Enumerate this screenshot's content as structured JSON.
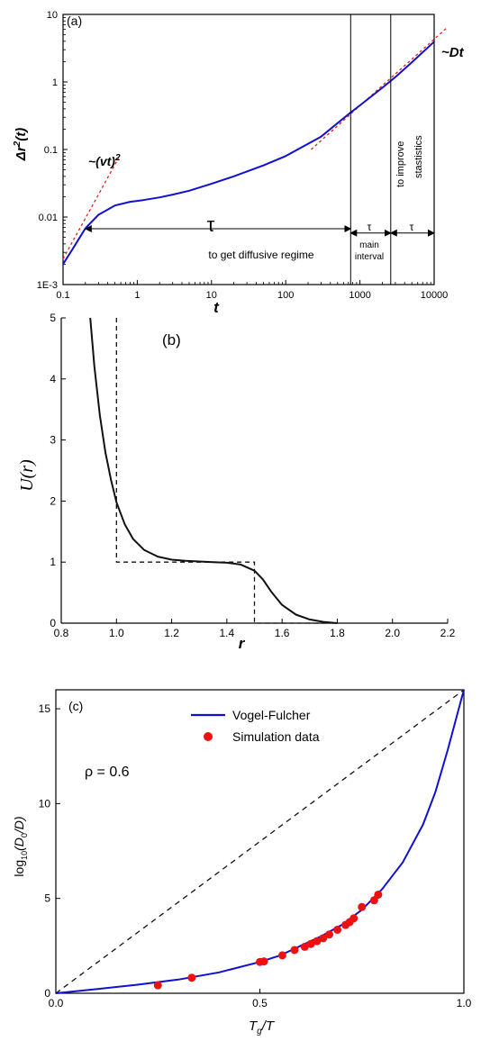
{
  "chart_data": [
    {
      "id": "a",
      "type": "line",
      "panel_label": "(a)",
      "xlabel": "t",
      "ylabel_main": "Δr",
      "ylabel_sup": "2",
      "ylabel_tail": "(t)",
      "xscale": "log",
      "yscale": "log",
      "xlim": [
        0.1,
        10000
      ],
      "ylim": [
        0.001,
        10
      ],
      "x_ticks": [
        0.1,
        1,
        10,
        100,
        1000,
        10000
      ],
      "x_tick_labels": [
        "0.1",
        "1",
        "10",
        "100",
        "1000",
        "10000"
      ],
      "y_ticks": [
        0.001,
        0.01,
        0.1,
        1,
        10
      ],
      "y_tick_labels": [
        "1E-3",
        "0.01",
        "0.1",
        "1",
        "10"
      ],
      "series": [
        {
          "color": "#1010d0",
          "style": "solid",
          "x": [
            0.1,
            0.14,
            0.2,
            0.3,
            0.5,
            0.8,
            1.2,
            2,
            3,
            5,
            10,
            20,
            50,
            100,
            300,
            720,
            1000,
            2000,
            3000,
            5000,
            10000
          ],
          "y": [
            0.002,
            0.0036,
            0.0068,
            0.0108,
            0.0148,
            0.0168,
            0.0178,
            0.0195,
            0.0215,
            0.0245,
            0.031,
            0.04,
            0.058,
            0.08,
            0.155,
            0.34,
            0.45,
            0.82,
            1.18,
            1.95,
            3.95
          ]
        }
      ],
      "dashed_lines": [
        {
          "name": "~(vt)^2",
          "color": "#e02020",
          "x": [
            0.1,
            0.56
          ],
          "y": [
            0.0024,
            0.075
          ]
        },
        {
          "name": "~Dt",
          "color": "#e02020",
          "x": [
            220,
            14500
          ],
          "y": [
            0.1,
            6.2
          ]
        }
      ],
      "vlines": [
        750,
        2600,
        10000
      ],
      "annotations": {
        "vt_label": "~(vt)",
        "vt_sup": "2",
        "dt_label": "~Dt",
        "tau": "τ",
        "diffusive": "to get diffusive regime",
        "main1": "main",
        "main2": "interval",
        "improve": "to improve",
        "statistics": "stastistics"
      }
    },
    {
      "id": "b",
      "type": "line",
      "panel_label": "(b)",
      "xlabel": "r",
      "ylabel": "U(r)",
      "xlim": [
        0.8,
        2.2
      ],
      "ylim": [
        0,
        5
      ],
      "x_ticks": [
        0.8,
        1.0,
        1.2,
        1.4,
        1.6,
        1.8,
        2.0,
        2.2
      ],
      "x_tick_labels": [
        "0.8",
        "1.0",
        "1.2",
        "1.4",
        "1.6",
        "1.8",
        "2.0",
        "2.2"
      ],
      "y_ticks": [
        0,
        1,
        2,
        3,
        4,
        5
      ],
      "y_tick_labels": [
        "0",
        "1",
        "2",
        "3",
        "4",
        "5"
      ],
      "series": [
        {
          "color": "#111111",
          "style": "solid",
          "x": [
            0.905,
            0.92,
            0.94,
            0.96,
            0.98,
            1.0,
            1.03,
            1.06,
            1.1,
            1.15,
            1.2,
            1.25,
            1.3,
            1.35,
            1.4,
            1.45,
            1.5,
            1.53,
            1.56,
            1.6,
            1.65,
            1.7,
            1.75,
            1.8
          ],
          "y": [
            5.0,
            4.2,
            3.4,
            2.8,
            2.35,
            1.98,
            1.62,
            1.38,
            1.2,
            1.09,
            1.04,
            1.02,
            1.01,
            1.0,
            0.99,
            0.96,
            0.86,
            0.72,
            0.52,
            0.3,
            0.14,
            0.06,
            0.02,
            0.0
          ]
        },
        {
          "color": "#111111",
          "style": "dashed",
          "x": [
            1.0,
            1.0,
            1.5,
            1.5,
            1.8
          ],
          "y": [
            5.0,
            1.0,
            1.0,
            0.0,
            0.0
          ]
        }
      ]
    },
    {
      "id": "c",
      "type": "line",
      "panel_label": "(c)",
      "xlabel_main": "T",
      "xlabel_sub": "g",
      "xlabel_tail": "/T",
      "ylabel_main": "log",
      "ylabel_sub": "10",
      "ylabel_tail": "(D",
      "ylabel_sub2": "0",
      "ylabel_end": "/D)",
      "xlim": [
        0,
        1
      ],
      "ylim": [
        0,
        16
      ],
      "x_ticks": [
        0,
        0.5,
        1
      ],
      "x_tick_labels": [
        "0.0",
        "0.5",
        "1.0"
      ],
      "y_ticks": [
        0,
        5,
        10,
        15
      ],
      "y_tick_labels": [
        "0",
        "5",
        "10",
        "15"
      ],
      "rho_label": "ρ = 0.6",
      "series": [
        {
          "name": "Vogel-Fulcher",
          "color": "#1010d0",
          "style": "solid",
          "x": [
            0,
            0.1,
            0.2,
            0.3,
            0.4,
            0.5,
            0.55,
            0.6,
            0.65,
            0.7,
            0.75,
            0.8,
            0.85,
            0.9,
            0.93,
            0.96,
            0.98,
            1.0
          ],
          "y": [
            0,
            0.22,
            0.45,
            0.72,
            1.1,
            1.65,
            2.0,
            2.5,
            3.0,
            3.6,
            4.4,
            5.5,
            6.9,
            8.9,
            10.6,
            12.8,
            14.4,
            16.0
          ]
        },
        {
          "name": "Simulation data",
          "color": "#ee1111",
          "style": "markers",
          "x": [
            0.25,
            0.333,
            0.5,
            0.51,
            0.555,
            0.585,
            0.61,
            0.625,
            0.64,
            0.655,
            0.67,
            0.69,
            0.71,
            0.72,
            0.73,
            0.75,
            0.78,
            0.79
          ],
          "y": [
            0.42,
            0.82,
            1.65,
            1.68,
            2.0,
            2.28,
            2.45,
            2.6,
            2.75,
            2.9,
            3.1,
            3.35,
            3.6,
            3.75,
            3.95,
            4.55,
            4.9,
            5.2
          ]
        }
      ],
      "dashed_diagonal": {
        "color": "#111111",
        "x": [
          0,
          1
        ],
        "y": [
          0,
          16
        ]
      }
    }
  ]
}
